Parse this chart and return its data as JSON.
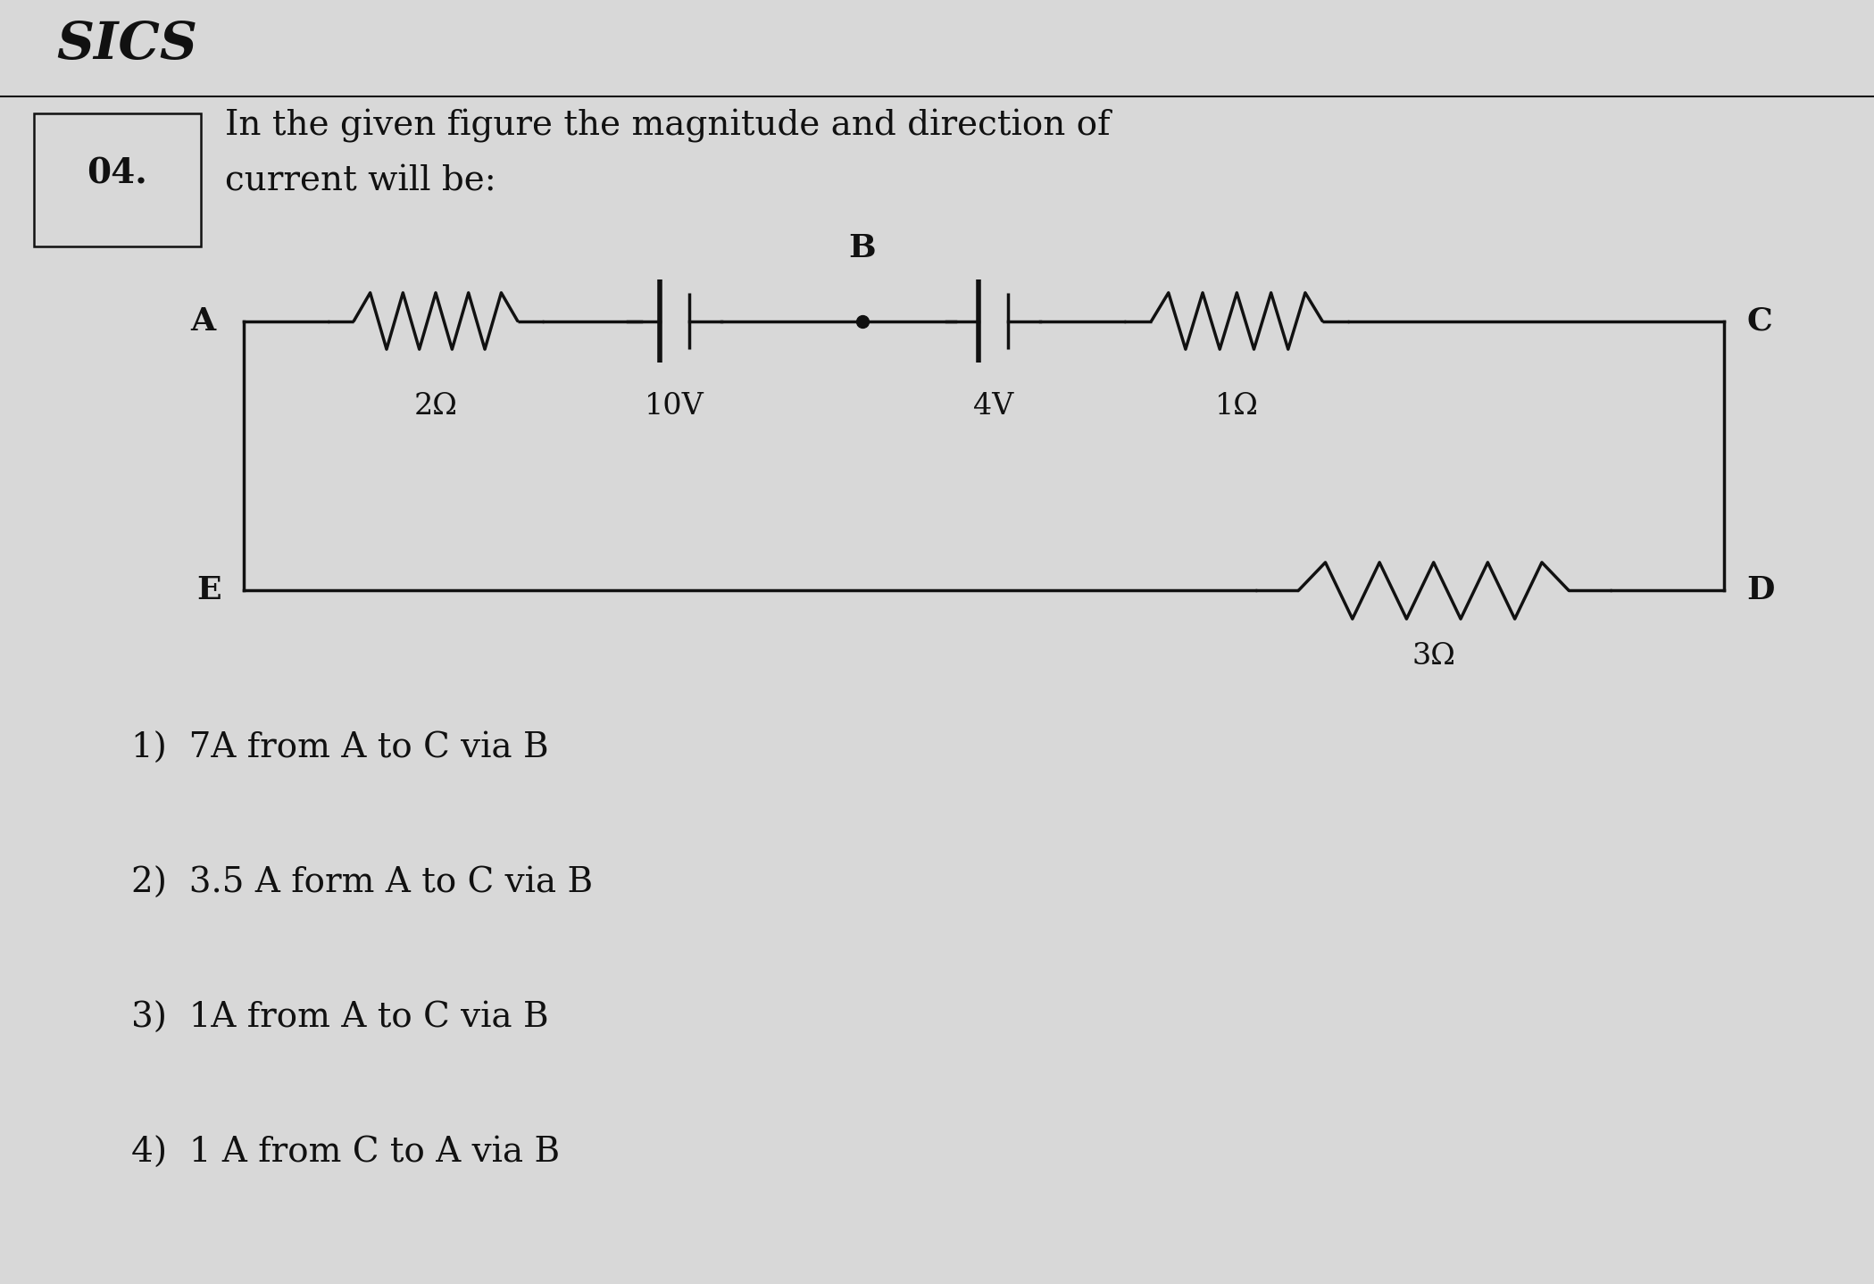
{
  "title_text": "SICS",
  "header_text": "04.",
  "question_line1": "In the given figure the magnitude and direction of",
  "question_line2": "current will be:",
  "bg_color": "#d8d8d8",
  "text_color": "#111111",
  "options": [
    "1)  7A from A to C via B",
    "2)  3.5 A form A to C via B",
    "3)  1A from A to C via B",
    "4)  1 A from C to A via B"
  ],
  "circuit": {
    "label_2ohm": "2Ω",
    "label_10V": "10V",
    "label_4V": "4V",
    "label_1ohm": "1Ω",
    "label_3ohm": "3Ω"
  },
  "figsize": [
    20.99,
    14.38
  ],
  "dpi": 100
}
